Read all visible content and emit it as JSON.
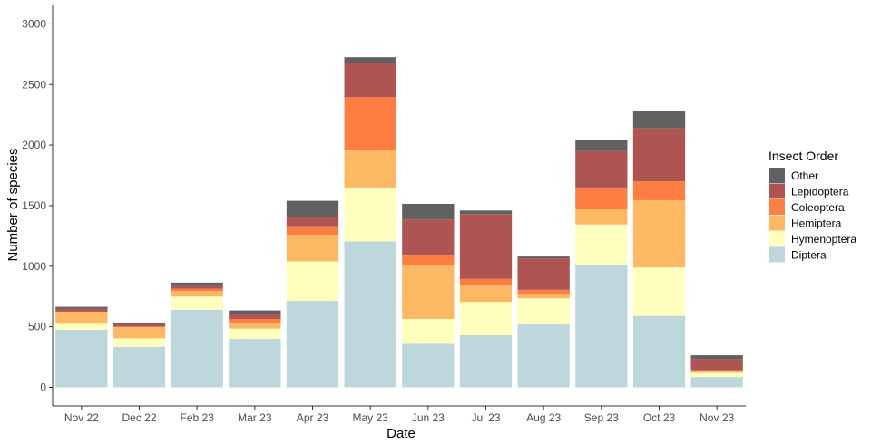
{
  "chart_data": {
    "type": "bar",
    "stacked": true,
    "xlabel": "Date",
    "ylabel": "Number of species",
    "ylim": [
      0,
      3150
    ],
    "yticks": [
      0,
      500,
      1000,
      1500,
      2000,
      2500,
      3000
    ],
    "grid": false,
    "legend": {
      "title": "Insect Order",
      "position": "right"
    },
    "categories": [
      "Nov 22",
      "Dec 22",
      "Feb 23",
      "Mar 23",
      "Apr 23",
      "May 23",
      "Jun 23",
      "Jul 23",
      "Aug 23",
      "Sep 23",
      "Oct 23",
      "Nov 23"
    ],
    "series": [
      {
        "name": "Diptera",
        "color": "#bdd7dd",
        "values": [
          475,
          335,
          640,
          400,
          715,
          1205,
          360,
          430,
          520,
          1015,
          590,
          85
        ]
      },
      {
        "name": "Hymenoptera",
        "color": "#ffffbe",
        "values": [
          50,
          70,
          110,
          85,
          325,
          445,
          205,
          275,
          215,
          330,
          400,
          35
        ]
      },
      {
        "name": "Hemiptera",
        "color": "#fdb863",
        "values": [
          100,
          95,
          45,
          50,
          220,
          305,
          440,
          140,
          30,
          125,
          555,
          20
        ]
      },
      {
        "name": "Coleoptera",
        "color": "#fd7e42",
        "values": [
          0,
          0,
          20,
          30,
          70,
          440,
          90,
          50,
          40,
          180,
          155,
          0
        ]
      },
      {
        "name": "Lepidoptera",
        "color": "#ae5554",
        "values": [
          25,
          20,
          20,
          40,
          75,
          285,
          290,
          535,
          260,
          300,
          440,
          95
        ]
      },
      {
        "name": "Other",
        "color": "#616161",
        "values": [
          15,
          15,
          30,
          30,
          135,
          45,
          130,
          30,
          15,
          90,
          140,
          30
        ]
      }
    ]
  }
}
